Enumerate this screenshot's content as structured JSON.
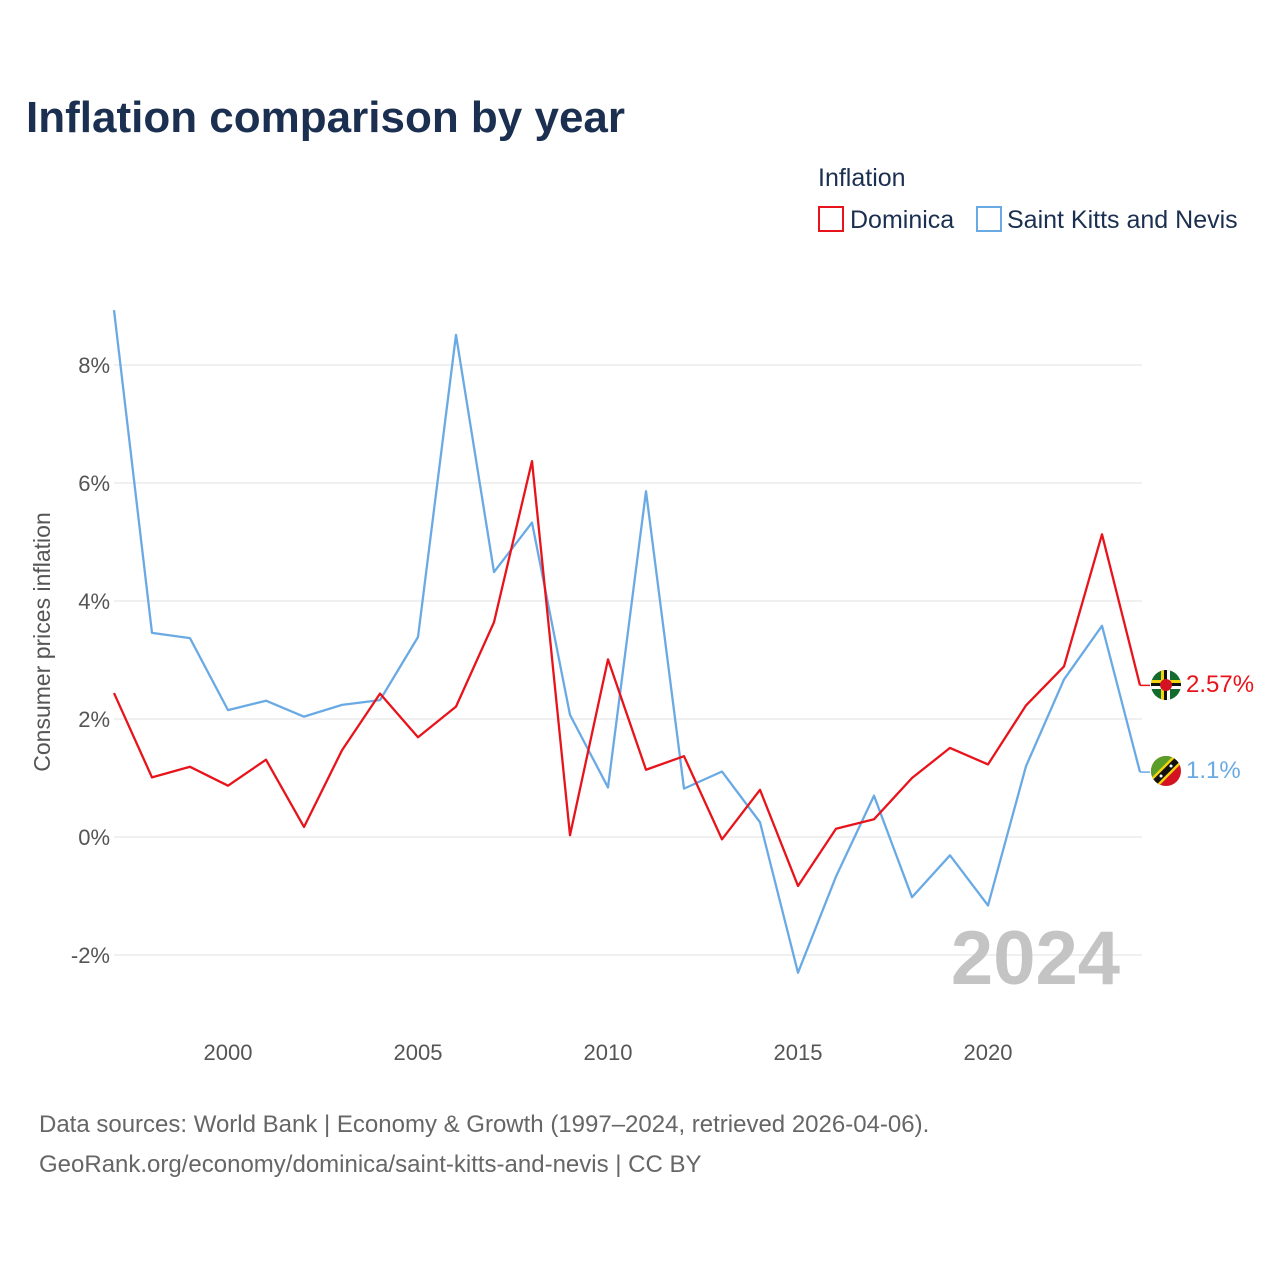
{
  "colors": {
    "dominica": "#e8141b",
    "skn": "#6aaae4",
    "title": "#1b2f50",
    "axis_text": "#555555",
    "grid": "#e6e6e6",
    "watermark": "#c4c4c4",
    "source": "#666666"
  },
  "chart_data": {
    "type": "line",
    "title": "Inflation comparison by year",
    "legend_title": "Inflation",
    "legend_position": "top-right",
    "ylabel": "Consumer prices inflation",
    "xlabel": "",
    "xlim": [
      1997,
      2024
    ],
    "ylim": [
      -3.1,
      9.2
    ],
    "x_ticks": [
      2000,
      2005,
      2010,
      2015,
      2020
    ],
    "y_ticks": [
      {
        "value": -2,
        "label": "-2%"
      },
      {
        "value": 0,
        "label": "0%"
      },
      {
        "value": 2,
        "label": "2%"
      },
      {
        "value": 4,
        "label": "4%"
      },
      {
        "value": 6,
        "label": "6%"
      },
      {
        "value": 8,
        "label": "8%"
      }
    ],
    "x": [
      1997,
      1998,
      1999,
      2000,
      2001,
      2002,
      2003,
      2004,
      2005,
      2006,
      2007,
      2008,
      2009,
      2010,
      2011,
      2012,
      2013,
      2014,
      2015,
      2016,
      2017,
      2018,
      2019,
      2020,
      2021,
      2022,
      2023,
      2024
    ],
    "series": [
      {
        "name": "Dominica",
        "color_key": "dominica",
        "flag_icon": "dominica-flag-icon",
        "end_label": "2.57%",
        "values": [
          2.44,
          1.01,
          1.19,
          0.87,
          1.31,
          0.17,
          1.47,
          2.43,
          1.69,
          2.21,
          3.64,
          6.37,
          0.03,
          3.01,
          1.14,
          1.37,
          -0.04,
          0.8,
          -0.83,
          0.14,
          0.3,
          1.0,
          1.51,
          1.23,
          2.23,
          2.89,
          5.13,
          2.57
        ]
      },
      {
        "name": "Saint Kitts and Nevis",
        "color_key": "skn",
        "flag_icon": "saint-kitts-nevis-flag-icon",
        "end_label": "1.1%",
        "values": [
          8.93,
          3.46,
          3.37,
          2.15,
          2.31,
          2.04,
          2.24,
          2.32,
          3.39,
          8.51,
          4.49,
          5.33,
          2.07,
          0.84,
          5.86,
          0.82,
          1.11,
          0.25,
          -2.3,
          -0.67,
          0.7,
          -1.02,
          -0.31,
          -1.16,
          1.2,
          2.67,
          3.58,
          1.1
        ]
      }
    ],
    "annotations": [
      {
        "text": "2024",
        "position": "bottom-right"
      }
    ]
  },
  "footer": {
    "source_line1": "Data sources: World Bank | Economy & Growth (1997–2024, retrieved 2026-04-06).",
    "source_line2": "GeoRank.org/economy/dominica/saint-kitts-and-nevis | CC BY"
  }
}
